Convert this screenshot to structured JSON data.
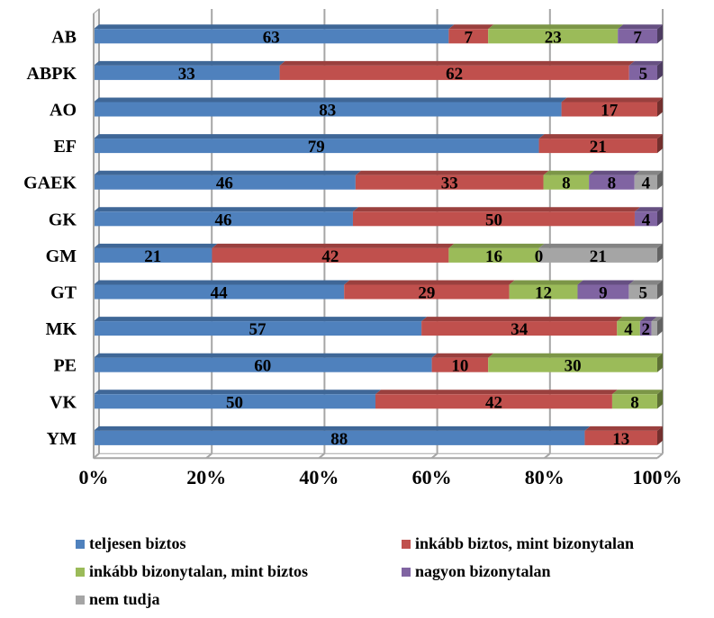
{
  "chart_data": {
    "type": "bar",
    "orientation": "horizontal",
    "stacked": "percent",
    "categories": [
      "AB",
      "ABPK",
      "AO",
      "EF",
      "GAEK",
      "GK",
      "GM",
      "GT",
      "MK",
      "PE",
      "VK",
      "YM"
    ],
    "series": [
      {
        "name": "teljesen biztos",
        "color": "#4F81BD",
        "values": [
          63,
          33,
          83,
          79,
          46,
          46,
          21,
          44,
          57,
          60,
          50,
          88
        ]
      },
      {
        "name": "inkább biztos, mint bizonytalan",
        "color": "#C0504D",
        "values": [
          7,
          62,
          17,
          21,
          33,
          50,
          42,
          29,
          34,
          10,
          42,
          13
        ]
      },
      {
        "name": "inkább bizonytalan, mint biztos",
        "color": "#9BBB59",
        "values": [
          23,
          0,
          0,
          0,
          8,
          0,
          16,
          12,
          4,
          30,
          8,
          0
        ]
      },
      {
        "name": "nagyon bizonytalan",
        "color": "#8064A2",
        "values": [
          7,
          5,
          0,
          0,
          8,
          4,
          0,
          9,
          2,
          0,
          0,
          0
        ]
      },
      {
        "name": "nem tudja",
        "color": "#A5A5A5",
        "values": [
          0,
          0,
          0,
          0,
          4,
          0,
          21,
          5,
          1,
          0,
          0,
          0
        ]
      }
    ],
    "labels": [
      [
        "63",
        "7",
        "23",
        "7",
        ""
      ],
      [
        "33",
        "62",
        "",
        "5",
        ""
      ],
      [
        "83",
        "17",
        "",
        "",
        ""
      ],
      [
        "79",
        "21",
        "",
        "",
        ""
      ],
      [
        "46",
        "33",
        "8",
        "8",
        "4"
      ],
      [
        "46",
        "50",
        "",
        "4",
        ""
      ],
      [
        "21",
        "42",
        "16",
        "0",
        "21"
      ],
      [
        "44",
        "29",
        "12",
        "9",
        "5"
      ],
      [
        "57",
        "34",
        "4",
        "2",
        ""
      ],
      [
        "60",
        "10",
        "30",
        "",
        ""
      ],
      [
        "50",
        "42",
        "8",
        "",
        ""
      ],
      [
        "88",
        "13",
        "",
        "",
        ""
      ]
    ],
    "xticks": [
      "0%",
      "20%",
      "40%",
      "60%",
      "80%",
      "100%"
    ],
    "xlim": [
      0,
      100
    ],
    "grid": true,
    "legend_position": "bottom"
  }
}
